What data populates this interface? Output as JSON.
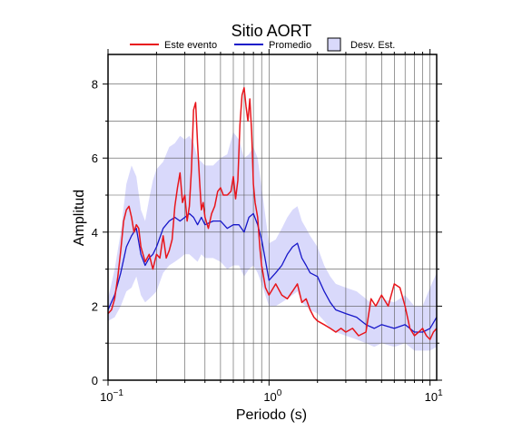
{
  "chart_data": {
    "type": "line",
    "title": "Sitio AORT",
    "xlabel": "Periodo (s)",
    "ylabel": "Amplitud",
    "x_scale": "log",
    "xlim": [
      0.1,
      11
    ],
    "ylim": [
      0,
      8.8
    ],
    "grid": true,
    "legend_position": "top",
    "x_ticks": [
      {
        "value": 0.1,
        "mantissa": "10",
        "exp": "−1"
      },
      {
        "value": 1,
        "mantissa": "10",
        "exp": "0"
      },
      {
        "value": 10,
        "mantissa": "10",
        "exp": "1"
      }
    ],
    "y_ticks": [
      "0",
      "2",
      "4",
      "6",
      "8"
    ],
    "legend": {
      "event_label": "Este evento",
      "mean_label": "Promedio",
      "std_label": "Desv. Est."
    },
    "colors": {
      "event": "#e8151b",
      "mean": "#1717c9",
      "std_fill": "#d9d9fb"
    },
    "series": [
      {
        "name": "Este evento",
        "x": [
          0.1,
          0.105,
          0.11,
          0.115,
          0.12,
          0.125,
          0.13,
          0.135,
          0.14,
          0.145,
          0.15,
          0.155,
          0.16,
          0.17,
          0.18,
          0.19,
          0.2,
          0.21,
          0.22,
          0.23,
          0.24,
          0.25,
          0.26,
          0.27,
          0.28,
          0.29,
          0.3,
          0.31,
          0.32,
          0.33,
          0.34,
          0.35,
          0.36,
          0.37,
          0.38,
          0.39,
          0.4,
          0.42,
          0.44,
          0.46,
          0.48,
          0.5,
          0.52,
          0.55,
          0.58,
          0.6,
          0.62,
          0.64,
          0.66,
          0.68,
          0.7,
          0.72,
          0.74,
          0.76,
          0.78,
          0.8,
          0.82,
          0.85,
          0.88,
          0.9,
          0.95,
          1.0,
          1.1,
          1.2,
          1.3,
          1.4,
          1.5,
          1.6,
          1.7,
          1.8,
          1.9,
          2.0,
          2.2,
          2.4,
          2.6,
          2.8,
          3.0,
          3.3,
          3.6,
          4.0,
          4.3,
          4.6,
          5.0,
          5.5,
          6.0,
          6.5,
          7.0,
          7.5,
          8.0,
          8.5,
          9.0,
          9.5,
          10.0,
          10.5,
          11.0
        ],
        "y": [
          1.8,
          1.9,
          2.2,
          2.8,
          3.5,
          4.3,
          4.6,
          4.7,
          4.4,
          4.0,
          4.2,
          4.1,
          3.6,
          3.2,
          3.4,
          3.0,
          3.4,
          3.3,
          3.9,
          3.3,
          3.5,
          3.8,
          4.7,
          5.2,
          5.6,
          4.8,
          5.0,
          4.3,
          4.7,
          5.7,
          7.3,
          7.5,
          6.4,
          5.4,
          4.6,
          4.8,
          4.4,
          4.1,
          4.5,
          4.7,
          5.1,
          5.2,
          5.0,
          5.0,
          5.1,
          5.5,
          4.9,
          5.4,
          6.9,
          7.7,
          7.9,
          7.4,
          7.0,
          7.6,
          6.7,
          5.3,
          4.8,
          4.4,
          3.5,
          3.1,
          2.5,
          2.3,
          2.6,
          2.3,
          2.2,
          2.4,
          2.6,
          2.1,
          2.2,
          1.9,
          1.7,
          1.6,
          1.5,
          1.4,
          1.3,
          1.4,
          1.3,
          1.4,
          1.2,
          1.3,
          2.2,
          2.0,
          2.3,
          2.0,
          2.6,
          2.5,
          2.0,
          1.4,
          1.2,
          1.3,
          1.4,
          1.2,
          1.1,
          1.3,
          1.4
        ]
      },
      {
        "name": "Promedio",
        "x": [
          0.1,
          0.11,
          0.12,
          0.13,
          0.14,
          0.15,
          0.16,
          0.17,
          0.18,
          0.19,
          0.2,
          0.22,
          0.24,
          0.26,
          0.28,
          0.3,
          0.32,
          0.34,
          0.36,
          0.38,
          0.4,
          0.45,
          0.5,
          0.55,
          0.6,
          0.65,
          0.7,
          0.75,
          0.8,
          0.85,
          0.9,
          1.0,
          1.1,
          1.2,
          1.3,
          1.4,
          1.5,
          1.6,
          1.7,
          1.8,
          2.0,
          2.2,
          2.4,
          2.6,
          3.0,
          3.5,
          4.0,
          4.5,
          5.0,
          6.0,
          7.0,
          8.0,
          9.0,
          10.0,
          11.0
        ],
        "y": [
          1.9,
          2.3,
          2.9,
          3.6,
          3.9,
          4.1,
          3.4,
          3.1,
          3.3,
          3.4,
          3.6,
          4.1,
          4.3,
          4.4,
          4.3,
          4.4,
          4.5,
          4.4,
          4.2,
          4.4,
          4.2,
          4.3,
          4.3,
          4.1,
          4.2,
          4.2,
          4.0,
          4.4,
          4.5,
          4.2,
          3.8,
          2.7,
          2.9,
          3.1,
          3.4,
          3.6,
          3.7,
          3.3,
          3.1,
          2.9,
          2.8,
          2.4,
          2.1,
          1.9,
          1.8,
          1.7,
          1.5,
          1.4,
          1.5,
          1.4,
          1.5,
          1.3,
          1.3,
          1.4,
          1.7
        ]
      },
      {
        "name": "Desv. Est.",
        "x": [
          0.1,
          0.11,
          0.12,
          0.13,
          0.14,
          0.15,
          0.16,
          0.17,
          0.18,
          0.19,
          0.2,
          0.22,
          0.24,
          0.26,
          0.28,
          0.3,
          0.32,
          0.34,
          0.36,
          0.38,
          0.4,
          0.45,
          0.5,
          0.55,
          0.6,
          0.65,
          0.7,
          0.75,
          0.8,
          0.85,
          0.9,
          1.0,
          1.1,
          1.2,
          1.3,
          1.4,
          1.5,
          1.6,
          1.7,
          1.8,
          2.0,
          2.2,
          2.4,
          2.6,
          3.0,
          3.5,
          4.0,
          4.5,
          5.0,
          6.0,
          7.0,
          8.0,
          9.0,
          10.0,
          11.0
        ],
        "upper": [
          2.2,
          3.0,
          4.0,
          5.3,
          5.8,
          5.5,
          4.6,
          4.3,
          4.9,
          5.4,
          5.7,
          5.9,
          6.3,
          6.4,
          6.6,
          6.5,
          6.6,
          6.4,
          6.0,
          5.9,
          5.8,
          5.8,
          6.0,
          6.1,
          6.7,
          6.5,
          6.0,
          6.1,
          6.3,
          6.0,
          5.2,
          3.7,
          3.8,
          4.1,
          4.4,
          4.6,
          4.7,
          4.3,
          4.1,
          3.9,
          3.6,
          3.1,
          2.8,
          2.6,
          2.5,
          2.4,
          2.2,
          2.0,
          2.2,
          2.1,
          2.3,
          2.0,
          2.0,
          2.5,
          2.9
        ],
        "lower": [
          1.6,
          1.7,
          2.0,
          2.4,
          2.5,
          2.8,
          2.3,
          2.1,
          2.2,
          2.3,
          2.4,
          2.9,
          3.1,
          3.2,
          3.3,
          3.4,
          3.4,
          3.3,
          3.2,
          3.4,
          3.3,
          3.3,
          3.2,
          3.0,
          3.1,
          3.1,
          2.8,
          3.0,
          3.1,
          2.9,
          2.6,
          2.0,
          2.0,
          2.1,
          2.2,
          2.3,
          2.4,
          2.1,
          2.0,
          1.9,
          1.8,
          1.6,
          1.4,
          1.3,
          1.2,
          1.1,
          1.0,
          0.9,
          1.0,
          0.9,
          1.0,
          0.8,
          0.8,
          0.8,
          0.9
        ]
      }
    ]
  }
}
